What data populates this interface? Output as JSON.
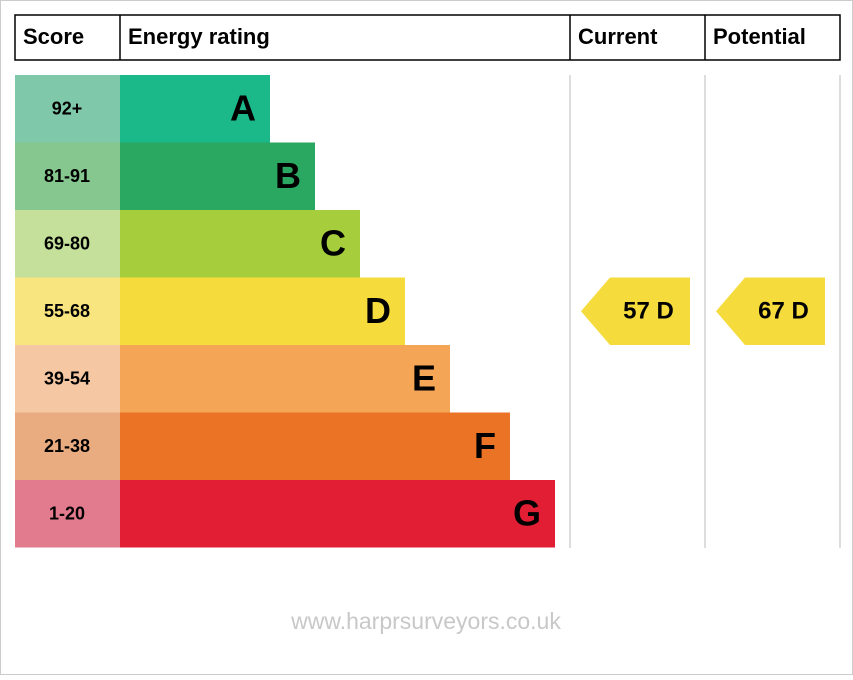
{
  "header": {
    "score": "Score",
    "energy_rating": "Energy rating",
    "current": "Current",
    "potential": "Potential"
  },
  "bands": [
    {
      "range": "92+",
      "letter": "A",
      "color": "#1bb98a",
      "score_color": "#7fc8a9"
    },
    {
      "range": "81-91",
      "letter": "B",
      "color": "#2aa862",
      "score_color": "#86c78f"
    },
    {
      "range": "69-80",
      "letter": "C",
      "color": "#a6cd3b",
      "score_color": "#c4e09a"
    },
    {
      "range": "55-68",
      "letter": "D",
      "color": "#f5db3b",
      "score_color": "#f9e57f"
    },
    {
      "range": "39-54",
      "letter": "E",
      "color": "#f4a556",
      "score_color": "#f5c8a3"
    },
    {
      "range": "21-38",
      "letter": "F",
      "color": "#eb7325",
      "score_color": "#e9ab80"
    },
    {
      "range": "1-20",
      "letter": "G",
      "color": "#e21e34",
      "score_color": "#e27b8d"
    }
  ],
  "current": {
    "label": "57 D",
    "band": 3
  },
  "potential": {
    "label": "67 D",
    "band": 3
  },
  "footer": "www.harprsurveyors.co.uk"
}
